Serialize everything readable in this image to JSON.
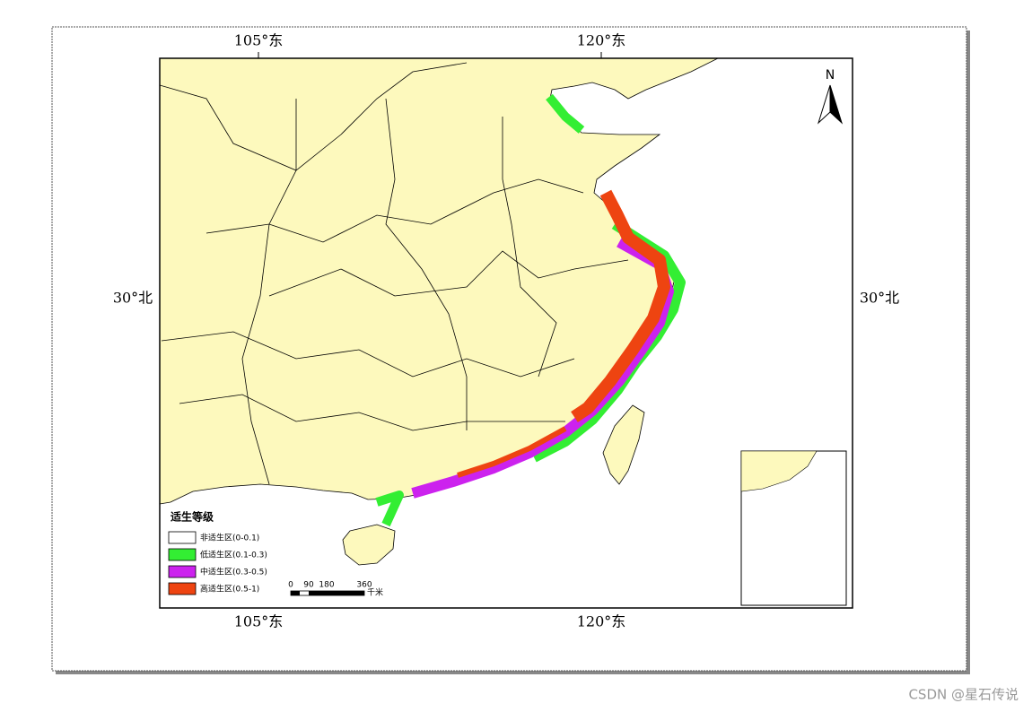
{
  "map": {
    "lon_labels": [
      "105°东",
      "120°东"
    ],
    "lat_labels": [
      "30°北"
    ],
    "north": "N",
    "legend": {
      "title": "适生等级",
      "items": [
        {
          "label": "非适生区(0-0.1)",
          "color": "#ffffff"
        },
        {
          "label": "低适生区(0.1-0.3)",
          "color": "#33ee33"
        },
        {
          "label": "中适生区(0.3-0.5)",
          "color": "#cc22ee"
        },
        {
          "label": "高适生区(0.5-1)",
          "color": "#ee4411"
        }
      ]
    },
    "scale": {
      "ticks": [
        "0",
        "90",
        "180",
        "360"
      ],
      "unit": "千米"
    }
  },
  "watermark": "CSDN @星石传说"
}
